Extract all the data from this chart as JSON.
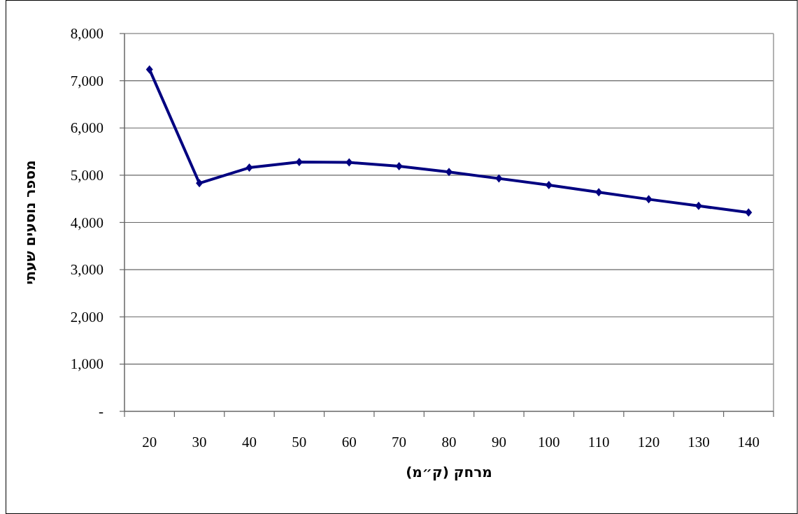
{
  "chart_data": {
    "type": "line",
    "xlabel": "מרחק (ק״מ)",
    "ylabel": "מספר נוסעים שעתי",
    "categories": [
      "20",
      "30",
      "40",
      "50",
      "60",
      "70",
      "80",
      "90",
      "100",
      "110",
      "120",
      "130",
      "140"
    ],
    "values": [
      7240,
      4830,
      5160,
      5280,
      5270,
      5190,
      5070,
      4930,
      4790,
      4640,
      4490,
      4350,
      4210
    ],
    "color": "#000080",
    "ylim": [
      0,
      8000
    ],
    "yticks": [
      {
        "value": 0,
        "label": "-"
      },
      {
        "value": 1000,
        "label": "1,000"
      },
      {
        "value": 2000,
        "label": "2,000"
      },
      {
        "value": 3000,
        "label": "3,000"
      },
      {
        "value": 4000,
        "label": "4,000"
      },
      {
        "value": 5000,
        "label": "5,000"
      },
      {
        "value": 6000,
        "label": "6,000"
      },
      {
        "value": 7000,
        "label": "7,000"
      },
      {
        "value": 8000,
        "label": "8,000"
      }
    ],
    "grid": "y",
    "marker": "diamond",
    "line_style": "solid"
  }
}
